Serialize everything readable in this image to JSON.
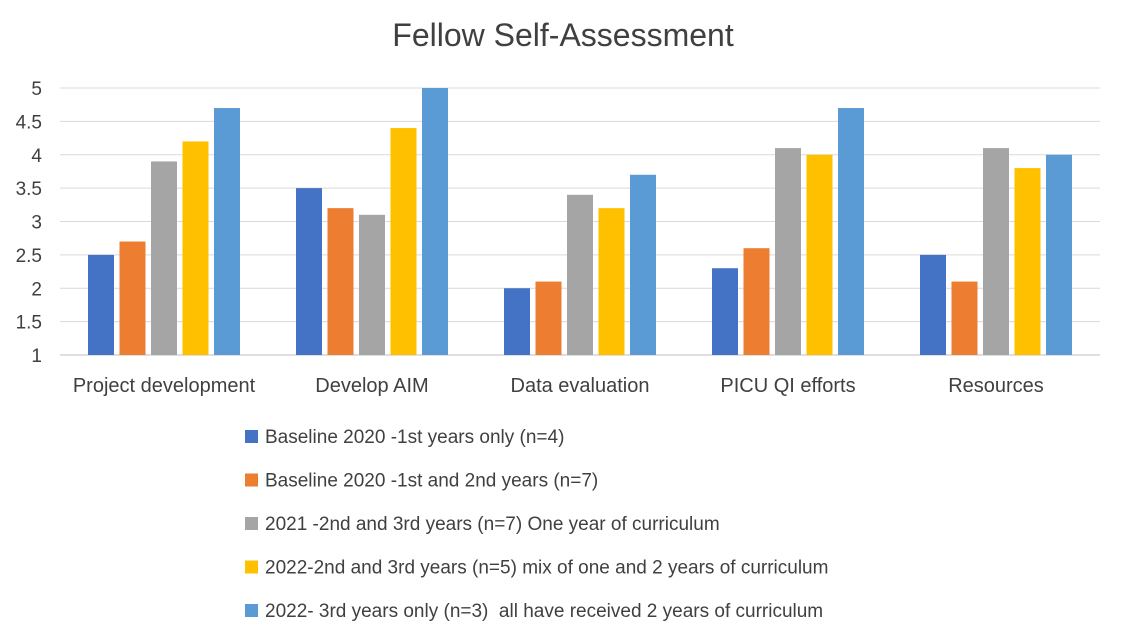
{
  "chart_data": {
    "type": "bar",
    "title": "Fellow Self-Assessment",
    "xlabel": "",
    "ylabel": "",
    "ylim": [
      1,
      5
    ],
    "yticks": [
      "1",
      "1.5",
      "2",
      "2.5",
      "3",
      "3.5",
      "4",
      "4.5",
      "5"
    ],
    "grid": true,
    "legend_position": "bottom",
    "categories": [
      "Project development",
      "Develop AIM",
      "Data evaluation",
      "PICU QI efforts",
      "Resources"
    ],
    "series": [
      {
        "name": "Baseline 2020 -1st years only (n=4)",
        "color": "#4472C4",
        "values": [
          2.5,
          3.5,
          2.0,
          2.3,
          2.5
        ]
      },
      {
        "name": "Baseline 2020 -1st and 2nd years (n=7)",
        "color": "#ED7D31",
        "values": [
          2.7,
          3.2,
          2.1,
          2.6,
          2.1
        ]
      },
      {
        "name": "2021 -2nd and 3rd years (n=7) One year of curriculum",
        "color": "#A5A5A5",
        "values": [
          3.9,
          3.1,
          3.4,
          4.1,
          4.1
        ]
      },
      {
        "name": "2022-2nd and 3rd years (n=5) mix of one and 2 years of curriculum",
        "color": "#FFC000",
        "values": [
          4.2,
          4.4,
          3.2,
          4.0,
          3.8
        ]
      },
      {
        "name": "2022- 3rd years only (n=3)  all have received 2 years of curriculum",
        "color": "#5B9BD5",
        "values": [
          4.7,
          5.0,
          3.7,
          4.7,
          4.0
        ]
      }
    ]
  }
}
